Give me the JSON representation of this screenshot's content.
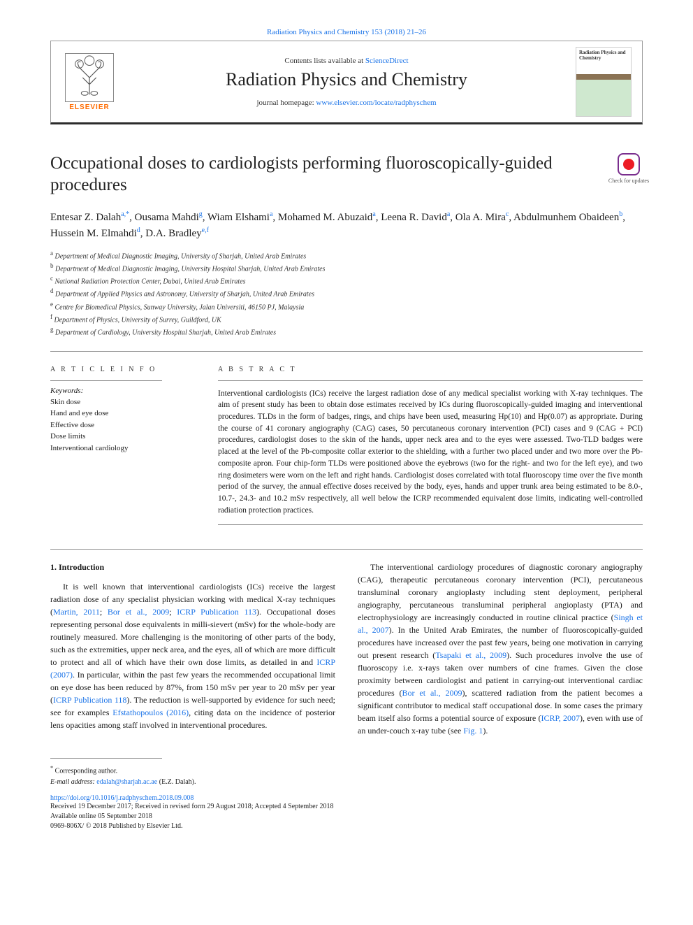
{
  "top_citation": "Radiation Physics and Chemistry 153 (2018) 21–26",
  "header": {
    "contents_text": "Contents lists available at ",
    "contents_link": "ScienceDirect",
    "journal_name": "Radiation Physics and Chemistry",
    "homepage_text": "journal homepage: ",
    "homepage_link": "www.elsevier.com/locate/radphyschem",
    "elsevier": "ELSEVIER",
    "cover_title": "Radiation Physics and Chemistry"
  },
  "check_updates": "Check for updates",
  "article": {
    "title": "Occupational doses to cardiologists performing fluoroscopically-guided procedures",
    "authors_html": "Entesar Z. Dalah<sup><a>a</a>,*</sup>, Ousama Mahdi<sup><a>g</a></sup>, Wiam Elshami<sup><a>a</a></sup>, Mohamed M. Abuzaid<sup><a>a</a></sup>, Leena R. David<sup><a>a</a></sup>, Ola A. Mira<sup><a>c</a></sup>, Abdulmunhem Obaideen<sup><a>b</a></sup>, Hussein M. Elmahdi<sup><a>d</a></sup>, D.A. Bradley<sup><a>e</a>,<a>f</a></sup>",
    "affiliations": [
      {
        "sup": "a",
        "text": "Department of Medical Diagnostic Imaging, University of Sharjah, United Arab Emirates"
      },
      {
        "sup": "b",
        "text": "Department of Medical Diagnostic Imaging, University Hospital Sharjah, United Arab Emirates"
      },
      {
        "sup": "c",
        "text": "National Radiation Protection Center, Dubai, United Arab Emirates"
      },
      {
        "sup": "d",
        "text": "Department of Applied Physics and Astronomy, University of Sharjah, United Arab Emirates"
      },
      {
        "sup": "e",
        "text": "Centre for Biomedical Physics, Sunway University, Jalan Universiti, 46150 PJ, Malaysia"
      },
      {
        "sup": "f",
        "text": "Department of Physics, University of Surrey, Guildford, UK"
      },
      {
        "sup": "g",
        "text": "Department of Cardiology, University Hospital Sharjah, United Arab Emirates"
      }
    ]
  },
  "labels": {
    "article_info": "A R T I C L E  I N F O",
    "abstract": "A B S T R A C T",
    "keywords": "Keywords:"
  },
  "keywords": [
    "Skin dose",
    "Hand and eye dose",
    "Effective dose",
    "Dose limits",
    "Interventional cardiology"
  ],
  "abstract": "Interventional cardiologists (ICs) receive the largest radiation dose of any medical specialist working with X-ray techniques. The aim of present study has been to obtain dose estimates received by ICs during fluoroscopically-guided imaging and interventional procedures. TLDs in the form of badges, rings, and chips have been used, measuring Hp(10) and Hp(0.07) as appropriate. During the course of 41 coronary angiography (CAG) cases, 50 percutaneous coronary intervention (PCI) cases and 9 (CAG + PCI) procedures, cardiologist doses to the skin of the hands, upper neck area and to the eyes were assessed. Two-TLD badges were placed at the level of the Pb-composite collar exterior to the shielding, with a further two placed under and two more over the Pb-composite apron. Four chip-form TLDs were positioned above the eyebrows (two for the right- and two for the left eye), and two ring dosimeters were worn on the left and right hands. Cardiologist doses correlated with total fluoroscopy time over the five month period of the survey, the annual effective doses received by the body, eyes, hands and upper trunk area being estimated to be 8.0-, 10.7-, 24.3- and 10.2 mSv respectively, all well below the ICRP recommended equivalent dose limits, indicating well-controlled radiation protection practices.",
  "intro_heading": "1. Introduction",
  "intro_p1_a": "It is well known that interventional cardiologists (ICs) receive the largest radiation dose of any specialist physician working with medical X-ray techniques (",
  "intro_p1_link1": "Martin, 2011",
  "intro_p1_b": "; ",
  "intro_p1_link2": "Bor et al., 2009",
  "intro_p1_c": "; ",
  "intro_p1_link3": "ICRP Publication 113",
  "intro_p1_d": "). Occupational doses representing personal dose equivalents in milli-sievert (mSv) for the whole-body are routinely measured. More challenging is the monitoring of other parts of the body, such as the extremities, upper neck area, and the eyes, all of which are more difficult to protect and all of which have their own dose limits, as detailed in and ",
  "intro_p1_link4": "ICRP (2007)",
  "intro_p1_e": ". In particular, within the past few years the recommended occupational limit on eye dose has been reduced by 87%, from 150 mSv per year to 20 mSv per year (",
  "intro_p1_link5": "ICRP Publication 118",
  "intro_p1_f": "). The reduction is well-supported by evidence for such need; see for examples ",
  "intro_p1_link6": "Efstathopoulos (2016)",
  "intro_p1_g": ", citing data on the incidence of posterior lens opacities among staff involved in interventional procedures.",
  "intro_p2_a": "The interventional cardiology procedures of diagnostic coronary angiography (CAG), therapeutic percutaneous coronary intervention (PCI), percutaneous transluminal coronary angioplasty including stent deployment, peripheral angiography, percutaneous transluminal peripheral angioplasty (PTA) and electrophysiology are increasingly conducted in routine clinical practice (",
  "intro_p2_link1": "Singh et al., 2007",
  "intro_p2_b": "). In the United Arab Emirates, the number of fluoroscopically-guided procedures have increased over the past few years, being one motivation in carrying out present research (",
  "intro_p2_link2": "Tsapaki et al., 2009",
  "intro_p2_c": "). Such procedures involve the use of fluoroscopy i.e. x-rays taken over numbers of cine frames. Given the close proximity between cardiologist and patient in carrying-out interventional cardiac procedures (",
  "intro_p2_link3": "Bor et al., 2009",
  "intro_p2_d": "), scattered radiation from the patient becomes a significant contributor to medical staff occupational dose. In some cases the primary beam itself also forms a potential source of exposure (",
  "intro_p2_link4": "ICRP, 2007",
  "intro_p2_e": "), even with use of an under-couch x-ray tube (see ",
  "intro_p2_link5": "Fig. 1",
  "intro_p2_f": ").",
  "footnotes": {
    "corr": "Corresponding author.",
    "email_label": "E-mail address: ",
    "email": "edalah@sharjah.ac.ae",
    "email_suffix": " (E.Z. Dalah)."
  },
  "doi": "https://doi.org/10.1016/j.radphyschem.2018.09.008",
  "history": [
    "Received 19 December 2017; Received in revised form 29 August 2018; Accepted 4 September 2018",
    "Available online 05 September 2018",
    "0969-806X/ © 2018 Published by Elsevier Ltd."
  ]
}
